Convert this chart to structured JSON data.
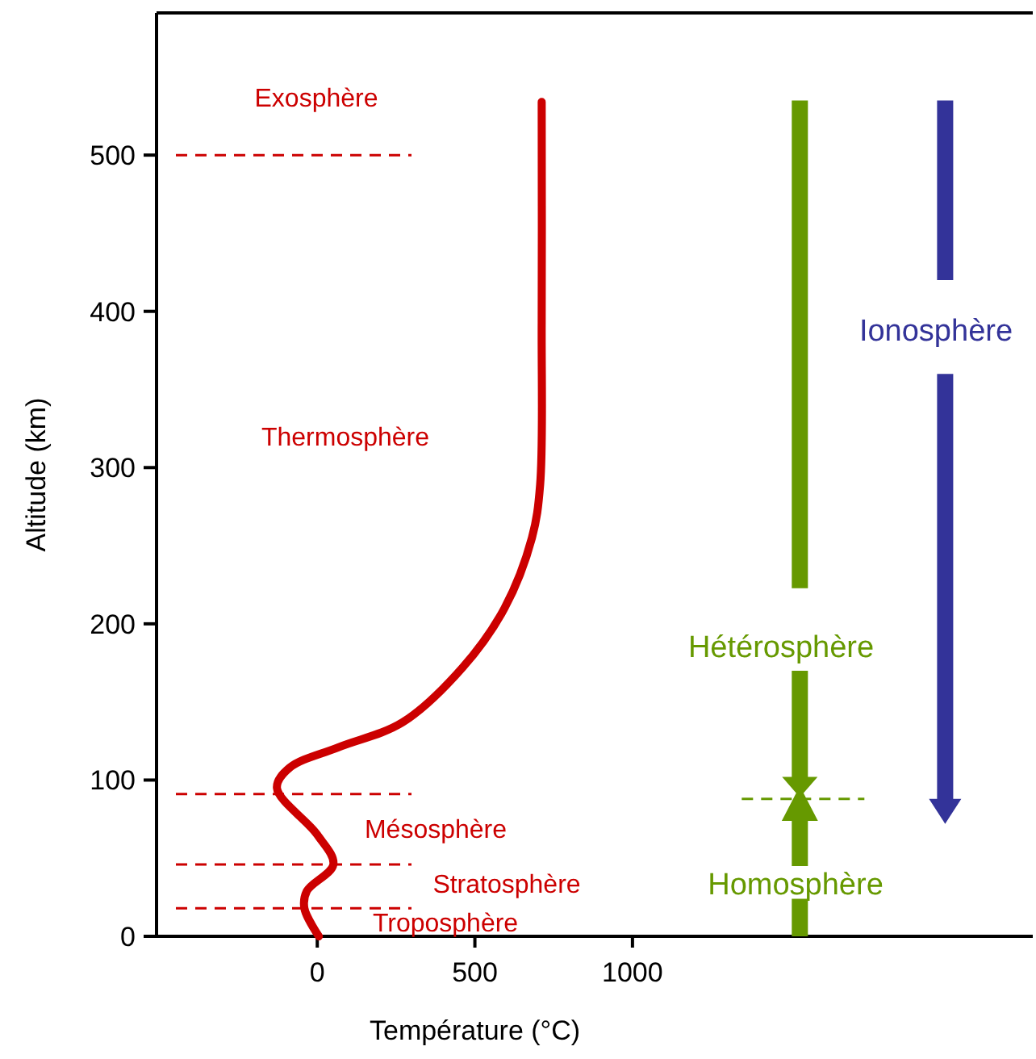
{
  "chart_data": {
    "type": "line",
    "xlabel": "Température (°C)",
    "ylabel": "Altitude (km)",
    "xlim": [
      -510,
      2270
    ],
    "ylim": [
      0,
      591
    ],
    "xticks": [
      0,
      500,
      1000
    ],
    "yticks": [
      0,
      100,
      200,
      300,
      400,
      500
    ],
    "series": [
      {
        "color": "#cc0000",
        "x": [
          5,
          -41,
          -33,
          51,
          0,
          -128,
          -87,
          67,
          271,
          461,
          594,
          681,
          707,
          712,
          712
        ],
        "values": [
          0,
          18,
          29,
          46,
          65,
          95,
          108,
          121,
          137,
          172,
          210,
          255,
          289,
          393,
          534
        ]
      }
    ],
    "ref_lines": [
      {
        "axis": "y",
        "value": 500,
        "color": "#cc0000",
        "line_style": "dashed"
      },
      {
        "axis": "y",
        "value": 91,
        "color": "#cc0000",
        "line_style": "dashed"
      },
      {
        "axis": "y",
        "value": 46,
        "color": "#cc0000",
        "line_style": "dashed"
      },
      {
        "axis": "y",
        "value": 18,
        "color": "#cc0000",
        "line_style": "dashed"
      },
      {
        "axis": "y",
        "value": 88,
        "color": "#669900",
        "line_style": "dashed"
      }
    ],
    "annotations": [
      "Exosphère",
      "Thermosphère",
      "Mésosphère",
      "Stratosphère",
      "Troposphère",
      "Hétérosphère",
      "Homosphère",
      "Ionosphère"
    ],
    "grid": false,
    "line_style": "solid"
  }
}
